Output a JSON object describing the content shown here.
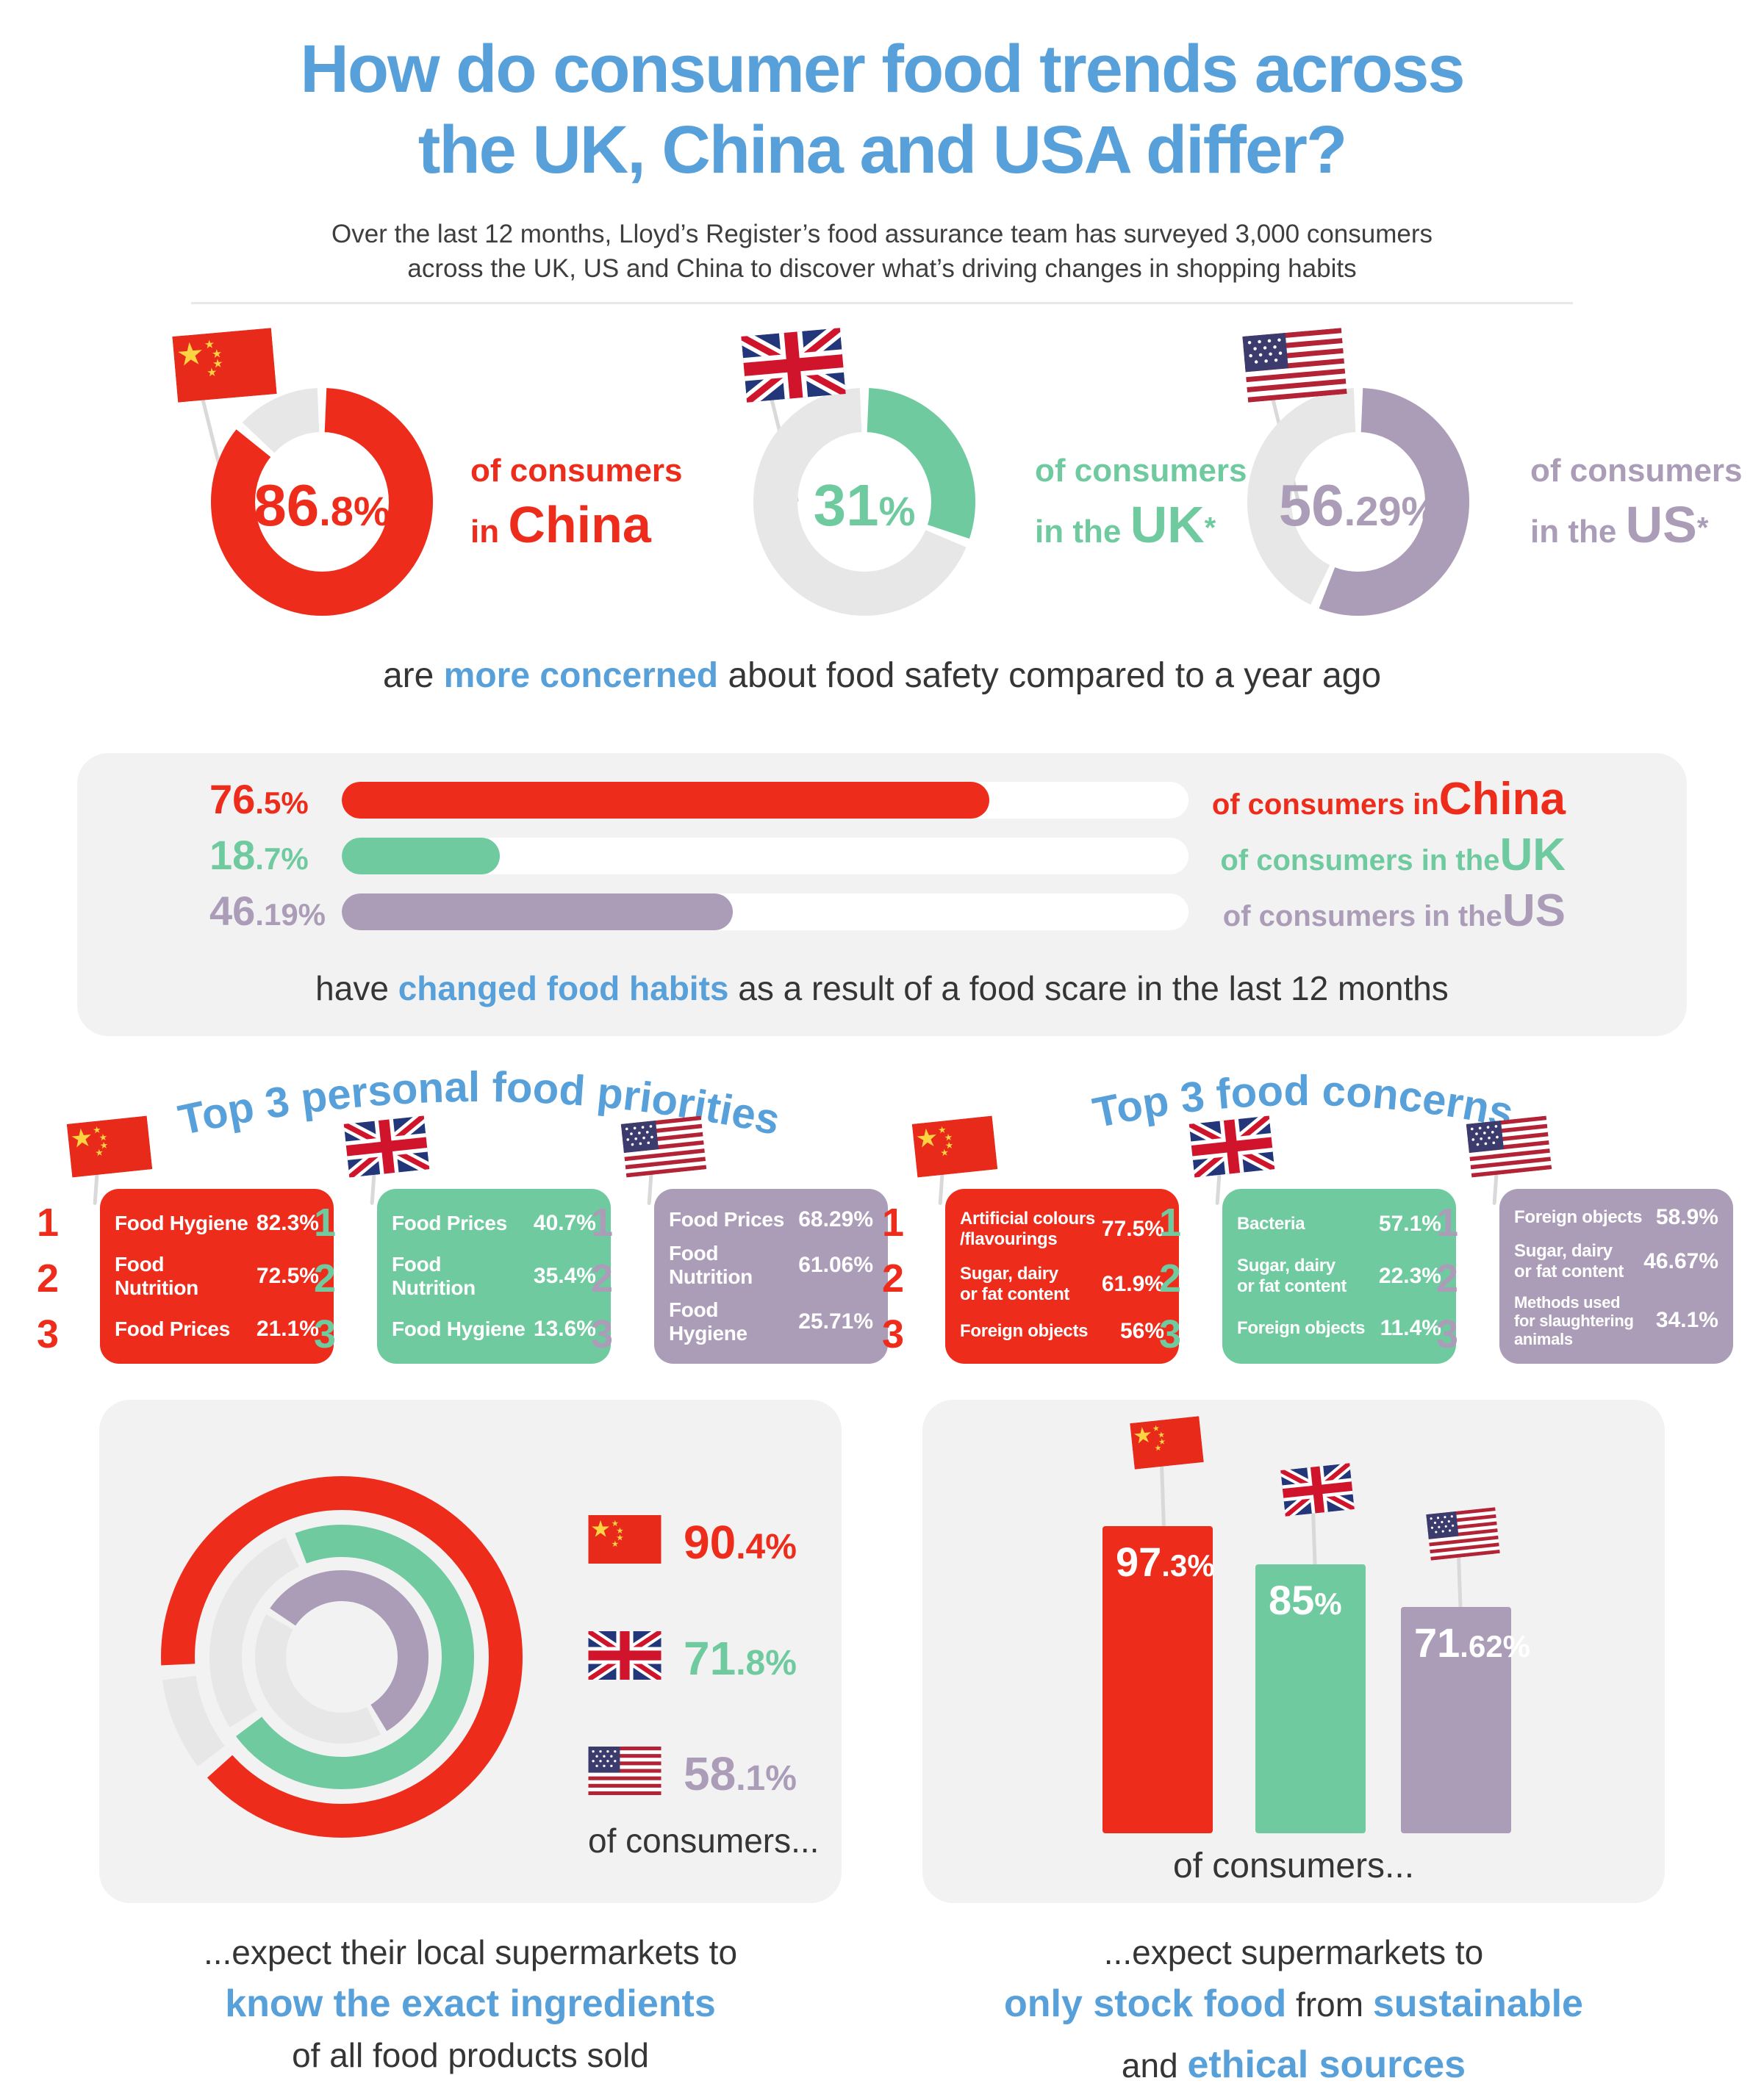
{
  "colors": {
    "china": "#ee2c1c",
    "uk": "#6fcb9f",
    "us": "#ab9cb7",
    "blue": "#57a0d9",
    "track": "#e7e7e8",
    "panel": "#f2f2f3",
    "pole": "#d9d9d9"
  },
  "header": {
    "title_line1": "How do consumer food trends across",
    "title_line2": "the UK, China and USA differ?",
    "subtitle_line1": "Over the last 12 months, Lloyd’s Register’s food assurance team has surveyed 3,000 consumers",
    "subtitle_line2": "across the UK, US and China to discover what’s driving changes in shopping habits"
  },
  "concern_donuts": {
    "items": [
      {
        "country": "China",
        "color": "china",
        "pct": 86.8,
        "value_main": "86",
        "value_sub": ".8%",
        "label_line1": "of consumers",
        "label_line2_prefix": "in ",
        "country_display": "China",
        "asterisk": ""
      },
      {
        "country": "UK",
        "color": "uk",
        "pct": 31,
        "value_main": "31",
        "value_sub": "%",
        "label_line1": "of consumers",
        "label_line2_prefix": "in the ",
        "country_display": "UK",
        "asterisk": "*"
      },
      {
        "country": "US",
        "color": "us",
        "pct": 56.29,
        "value_main": "56",
        "value_sub": ".29%",
        "label_line1": "of consumers",
        "label_line2_prefix": "in the ",
        "country_display": "US",
        "asterisk": "*"
      }
    ],
    "caption_prefix": "are ",
    "caption_highlight": "more concerned",
    "caption_suffix": " about food safety compared to a year ago"
  },
  "habits_panel": {
    "bars": [
      {
        "country": "China",
        "color": "china",
        "pct": 76.5,
        "value_main": "76",
        "value_sub": ".5%",
        "label_prefix": "of consumers in ",
        "country_display": "China"
      },
      {
        "country": "UK",
        "color": "uk",
        "pct": 18.7,
        "value_main": "18",
        "value_sub": ".7%",
        "label_prefix": "of consumers in the ",
        "country_display": "UK"
      },
      {
        "country": "US",
        "color": "us",
        "pct": 46.19,
        "value_main": "46",
        "value_sub": ".19%",
        "label_prefix": "of consumers in the ",
        "country_display": "US"
      }
    ],
    "caption_prefix": "have ",
    "caption_highlight": "changed food habits",
    "caption_suffix": " as a result of a food scare in the last 12 months"
  },
  "priorities": {
    "heading": "Top 3 personal food priorities",
    "tables": [
      {
        "country": "China",
        "color": "china",
        "rows": [
          {
            "rank": "1",
            "label": "Food Hygiene",
            "value": "82.3%"
          },
          {
            "rank": "2",
            "label": "Food Nutrition",
            "value": "72.5%"
          },
          {
            "rank": "3",
            "label": "Food Prices",
            "value": "21.1%"
          }
        ]
      },
      {
        "country": "UK",
        "color": "uk",
        "rows": [
          {
            "rank": "1",
            "label": "Food Prices",
            "value": "40.7%"
          },
          {
            "rank": "2",
            "label": "Food Nutrition",
            "value": "35.4%"
          },
          {
            "rank": "3",
            "label": "Food Hygiene",
            "value": "13.6%"
          }
        ]
      },
      {
        "country": "US",
        "color": "us",
        "rows": [
          {
            "rank": "1",
            "label": "Food Prices",
            "value": "68.29%"
          },
          {
            "rank": "2",
            "label": "Food Nutrition",
            "value": "61.06%"
          },
          {
            "rank": "3",
            "label": "Food Hygiene",
            "value": "25.71%"
          }
        ]
      }
    ]
  },
  "concerns": {
    "heading": "Top 3 food concerns",
    "tables": [
      {
        "country": "China",
        "color": "china",
        "rows": [
          {
            "rank": "1",
            "label": "Artificial colours\n/flavourings",
            "value": "77.5%"
          },
          {
            "rank": "2",
            "label": "Sugar, dairy\nor fat content",
            "value": "61.9%"
          },
          {
            "rank": "3",
            "label": "Foreign objects",
            "value": "56%"
          }
        ]
      },
      {
        "country": "UK",
        "color": "uk",
        "rows": [
          {
            "rank": "1",
            "label": "Bacteria",
            "value": "57.1%"
          },
          {
            "rank": "2",
            "label": "Sugar, dairy\nor fat content",
            "value": "22.3%"
          },
          {
            "rank": "3",
            "label": "Foreign objects",
            "value": "11.4%"
          }
        ]
      },
      {
        "country": "US",
        "color": "us",
        "rows": [
          {
            "rank": "1",
            "label": "Foreign objects",
            "value": "58.9%"
          },
          {
            "rank": "2",
            "label": "Sugar, dairy\nor fat content",
            "value": "46.67%"
          },
          {
            "rank": "3",
            "label": "Methods used\nfor slaughtering\nanimals",
            "value": "34.1%"
          }
        ]
      }
    ]
  },
  "ingredients_panel": {
    "rings": [
      {
        "country": "China",
        "color": "china",
        "pct": 90.4,
        "value_main": "90",
        "value_sub": ".4%"
      },
      {
        "country": "UK",
        "color": "uk",
        "pct": 71.8,
        "value_main": "71",
        "value_sub": ".8%"
      },
      {
        "country": "US",
        "color": "us",
        "pct": 58.1,
        "value_main": "58",
        "value_sub": ".1%"
      }
    ],
    "legend_caption": "of consumers...",
    "caption_line1": "...expect their local supermarkets to",
    "caption_highlight": "know the exact ingredients",
    "caption_line3": "of all food products sold"
  },
  "sustainable_panel": {
    "bars": [
      {
        "country": "China",
        "color": "china",
        "pct": 97.3,
        "value_main": "97",
        "value_sub": ".3%"
      },
      {
        "country": "UK",
        "color": "uk",
        "pct": 85,
        "value_main": "85",
        "value_sub": "%"
      },
      {
        "country": "US",
        "color": "us",
        "pct": 71.62,
        "value_main": "71",
        "value_sub": ".62%"
      }
    ],
    "bars_caption": "of consumers...",
    "caption_line1": "...expect supermarkets to",
    "caption_line2_hl1": "only stock food",
    "caption_line2_mid": " from ",
    "caption_line2_hl2": "sustainable",
    "caption_line3_prefix": "and ",
    "caption_line3_hl": "ethical sources"
  },
  "chart_data": [
    {
      "type": "pie",
      "title": "more concerned about food safety compared to a year ago",
      "categories": [
        "China",
        "UK",
        "US"
      ],
      "values": [
        86.8,
        31,
        56.29
      ],
      "unit": "%",
      "legend_position": "right-of-each-donut"
    },
    {
      "type": "bar",
      "title": "have changed food habits as a result of a food scare in the last 12 months",
      "categories": [
        "China",
        "UK",
        "US"
      ],
      "values": [
        76.5,
        18.7,
        46.19
      ],
      "unit": "%",
      "orientation": "horizontal",
      "xlim": [
        0,
        100
      ]
    },
    {
      "type": "table",
      "title": "Top 3 personal food priorities",
      "columns": [
        "Rank",
        "China",
        "China %",
        "UK",
        "UK %",
        "US",
        "US %"
      ],
      "rows": [
        [
          "1",
          "Food Hygiene",
          82.3,
          "Food Prices",
          40.7,
          "Food Prices",
          68.29
        ],
        [
          "2",
          "Food Nutrition",
          72.5,
          "Food Nutrition",
          35.4,
          "Food Nutrition",
          61.06
        ],
        [
          "3",
          "Food Prices",
          21.1,
          "Food Hygiene",
          13.6,
          "Food Hygiene",
          25.71
        ]
      ]
    },
    {
      "type": "table",
      "title": "Top 3 food concerns",
      "columns": [
        "Rank",
        "China",
        "China %",
        "UK",
        "UK %",
        "US",
        "US %"
      ],
      "rows": [
        [
          "1",
          "Artificial colours/flavourings",
          77.5,
          "Bacteria",
          57.1,
          "Foreign objects",
          58.9
        ],
        [
          "2",
          "Sugar, dairy or fat content",
          61.9,
          "Sugar, dairy or fat content",
          22.3,
          "Sugar, dairy or fat content",
          46.67
        ],
        [
          "3",
          "Foreign objects",
          56,
          "Foreign objects",
          11.4,
          "Methods used for slaughtering animals",
          34.1
        ]
      ]
    },
    {
      "type": "pie",
      "title": "expect their local supermarkets to know the exact ingredients of all food products sold",
      "categories": [
        "China",
        "UK",
        "US"
      ],
      "values": [
        90.4,
        71.8,
        58.1
      ],
      "unit": "%",
      "layout": "concentric-rings"
    },
    {
      "type": "bar",
      "title": "expect supermarkets to only stock food from sustainable and ethical sources",
      "categories": [
        "China",
        "UK",
        "US"
      ],
      "values": [
        97.3,
        85,
        71.62
      ],
      "unit": "%",
      "orientation": "vertical",
      "ylim": [
        0,
        100
      ]
    }
  ]
}
